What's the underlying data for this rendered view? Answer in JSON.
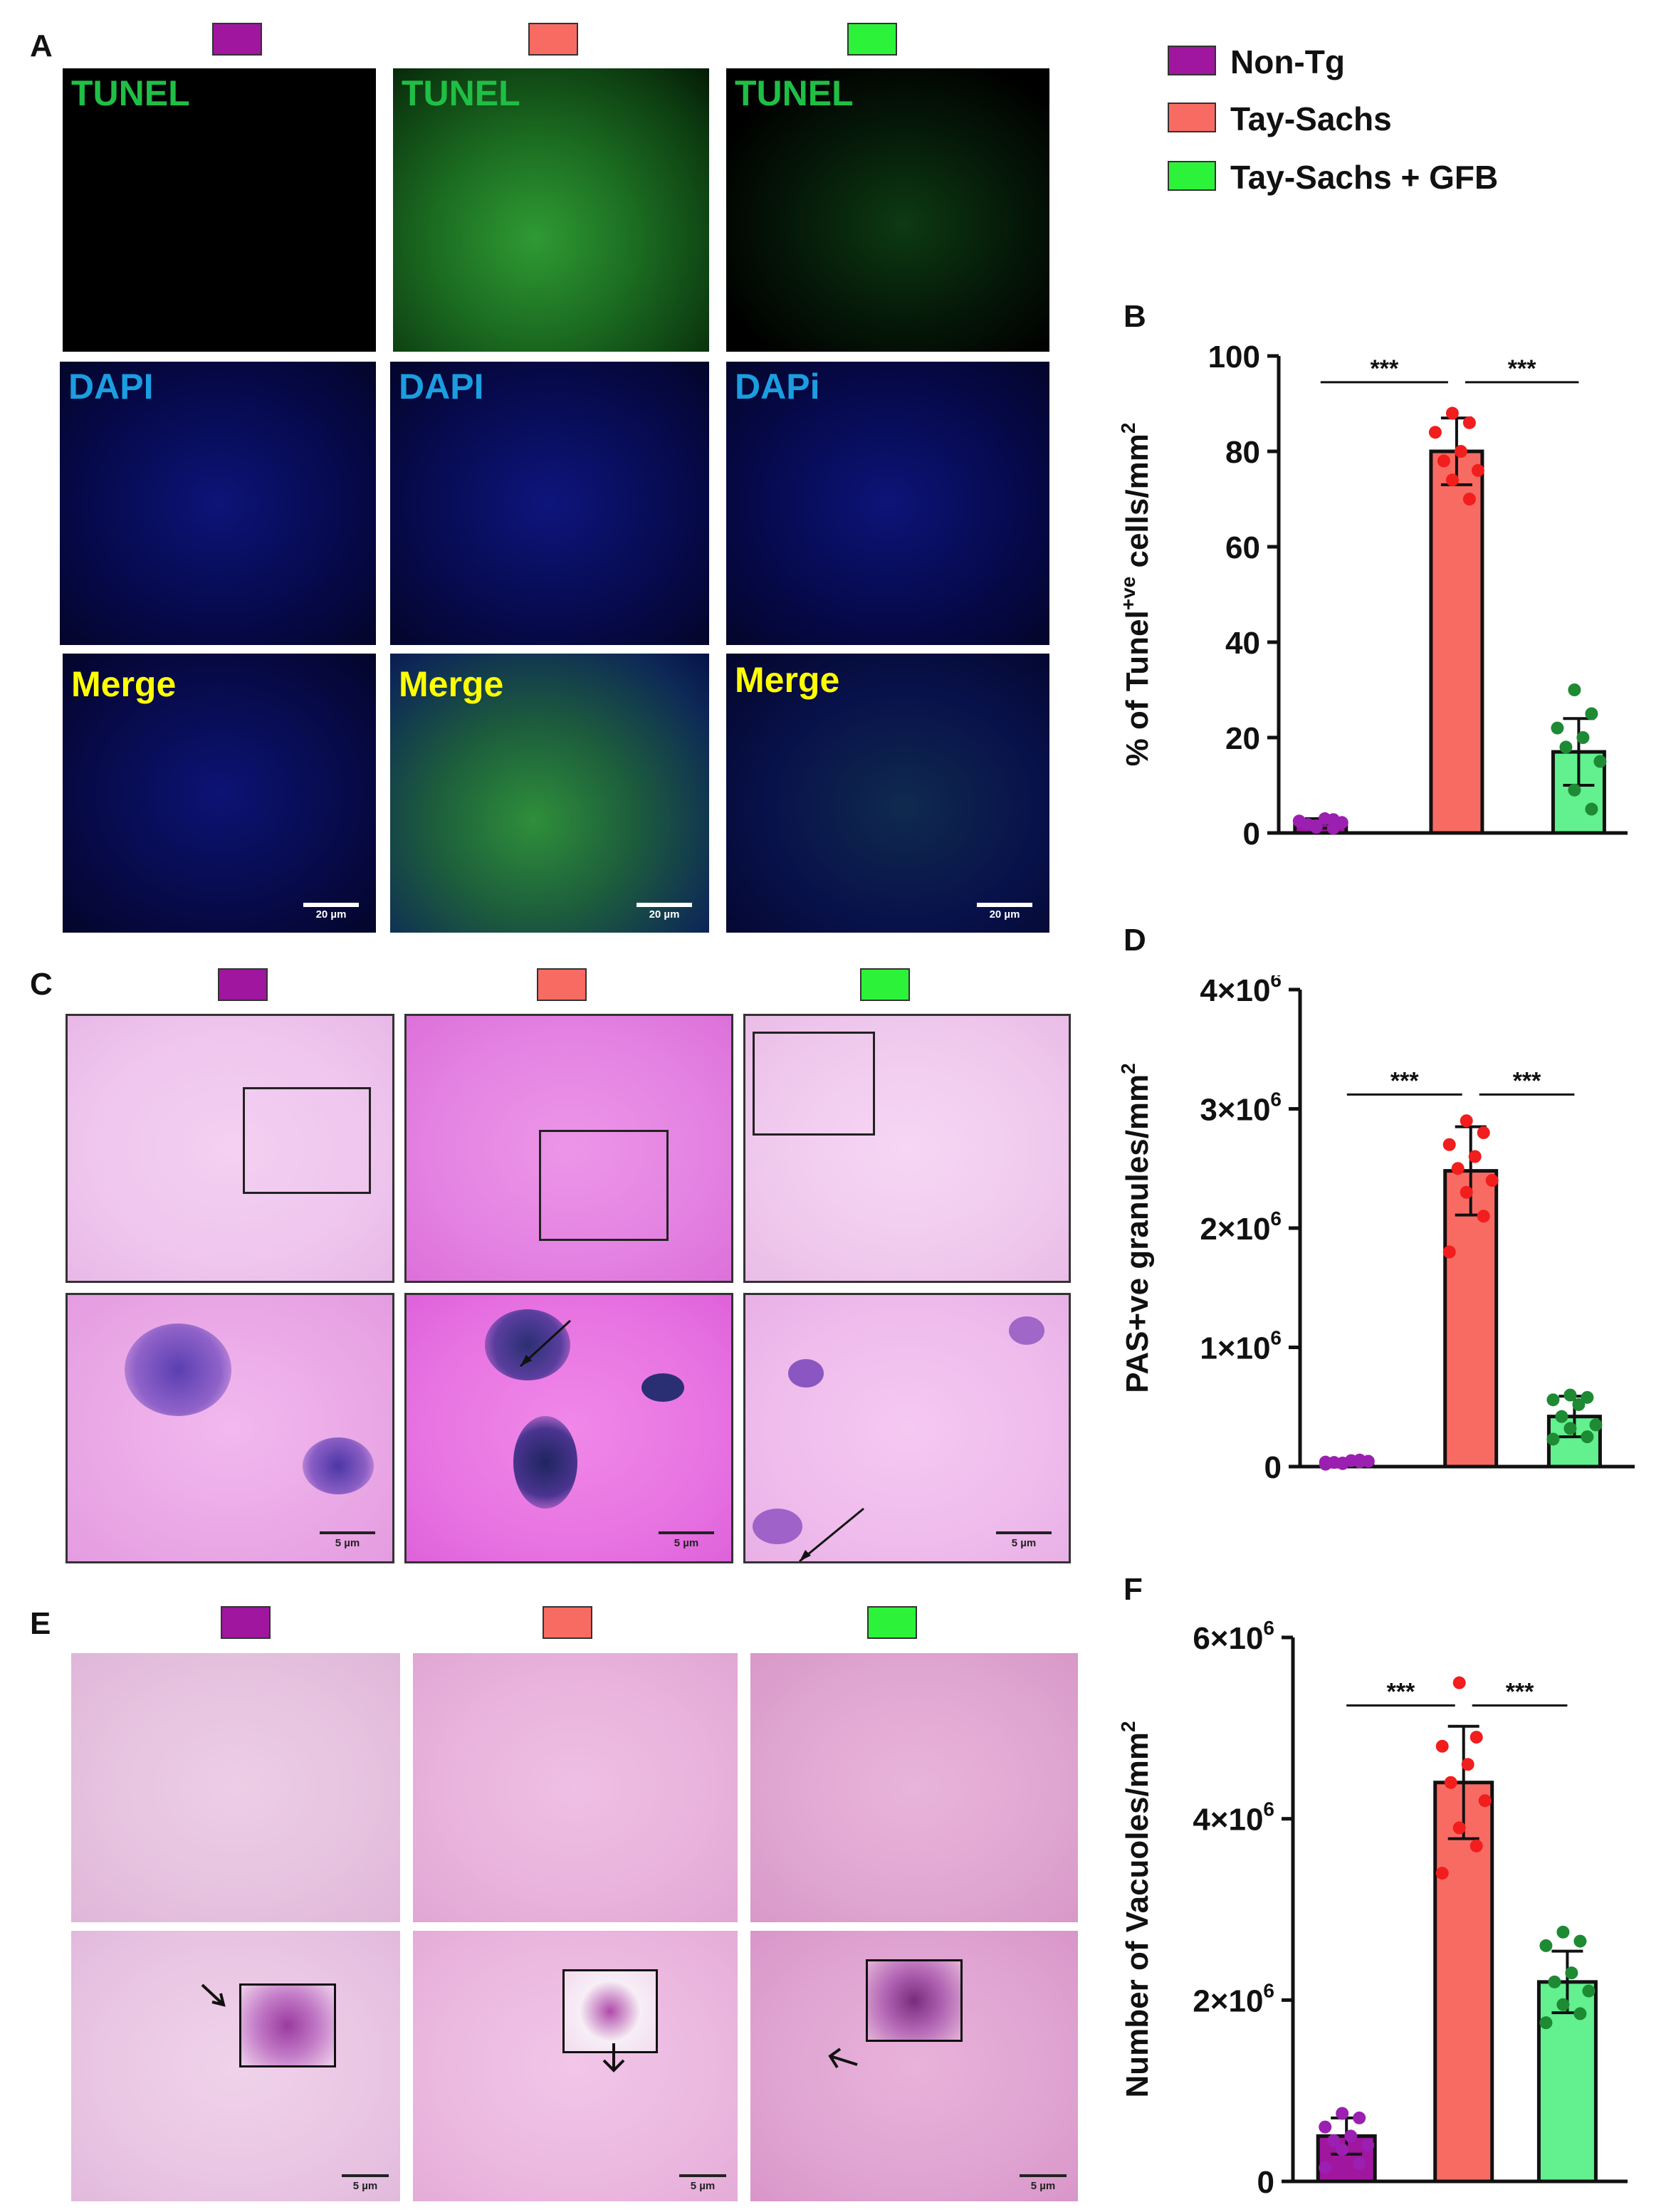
{
  "legend": {
    "items": [
      {
        "label": "Non-Tg",
        "color": "#a0169f"
      },
      {
        "label": "Tay-Sachs",
        "color": "#f86b63"
      },
      {
        "label": "Tay-Sachs + GFB",
        "color": "#2cf339"
      }
    ]
  },
  "panel_letters": {
    "a": "A",
    "b": "B",
    "c": "C",
    "d": "D",
    "e": "E",
    "f": "F"
  },
  "panel_a": {
    "row_labels": [
      "TUNEL",
      "DAPI",
      "Merge"
    ],
    "col3_dapi_label": "DAPi",
    "scale_bar": "20 µm",
    "label_colors": {
      "tunel": "#1fbf45",
      "dapi": "#1a9ee0",
      "merge": "#ffff00"
    }
  },
  "panel_c": {
    "scale_bar": "5 µm"
  },
  "panel_e": {
    "scale_bar": "5 µm"
  },
  "chart_data": [
    {
      "id": "B",
      "type": "bar",
      "categories": [
        "Non-Tg",
        "Tay-Sachs",
        "Tay-Sachs + GFB"
      ],
      "values": [
        2,
        80,
        17
      ],
      "error": [
        1,
        7,
        7
      ],
      "points": [
        [
          1.5,
          1.0,
          2.5,
          3.0,
          1.8,
          2.2,
          1.2,
          2.8
        ],
        [
          88,
          86,
          84,
          80,
          78,
          76,
          74,
          70
        ],
        [
          30,
          25,
          22,
          20,
          18,
          15,
          9,
          5
        ]
      ],
      "ylabel": "% of Tunel",
      "ylabel_sup": "+ve",
      "ylabel_tail": " cells/mm",
      "ylabel_sup2": "2",
      "ylim": [
        0,
        100
      ],
      "yticks": [
        "0",
        "20",
        "40",
        "60",
        "80",
        "100"
      ],
      "significance": [
        "***",
        "***"
      ],
      "colors": [
        "#a0169f",
        "#f86b63",
        "#63f08f"
      ],
      "point_colors": [
        "#9b1fb0",
        "#f21d1d",
        "#1e8a33"
      ]
    },
    {
      "id": "D",
      "type": "bar",
      "categories": [
        "Non-Tg",
        "Tay-Sachs",
        "Tay-Sachs + GFB"
      ],
      "values": [
        40000,
        2480000,
        420000
      ],
      "error": [
        15000,
        370000,
        170000
      ],
      "points": [
        [
          30000,
          40000,
          20000,
          50000,
          35000,
          45000,
          25000,
          55000,
          38000
        ],
        [
          2900000,
          2800000,
          2700000,
          2600000,
          2500000,
          2400000,
          2300000,
          2100000,
          1800000
        ],
        [
          600000,
          580000,
          560000,
          520000,
          420000,
          350000,
          320000,
          250000,
          230000
        ]
      ],
      "ylabel": "PAS+ve granules/mm",
      "ylabel_sup2": "2",
      "ylim": [
        0,
        4000000
      ],
      "yticks": [
        "0",
        "1×10",
        "2×10",
        "3×10",
        "4×10"
      ],
      "ytick_exp": "6",
      "significance": [
        "***",
        "***"
      ],
      "colors": [
        "#a0169f",
        "#f86b63",
        "#63f08f"
      ],
      "point_colors": [
        "#9b1fb0",
        "#f21d1d",
        "#1e8a33"
      ]
    },
    {
      "id": "F",
      "type": "bar",
      "categories": [
        "Non-Tg",
        "Tay-Sachs",
        "Tay-Sachs + GFB"
      ],
      "values": [
        500000,
        4400000,
        2200000
      ],
      "error": [
        200000,
        620000,
        340000
      ],
      "points": [
        [
          750000,
          700000,
          600000,
          500000,
          450000,
          400000,
          350000,
          200000,
          150000
        ],
        [
          5500000,
          4900000,
          4800000,
          4600000,
          4400000,
          4200000,
          3900000,
          3700000,
          3400000
        ],
        [
          2750000,
          2650000,
          2600000,
          2300000,
          2200000,
          2100000,
          1950000,
          1850000,
          1750000
        ]
      ],
      "ylabel": "Number of Vacuoles/mm",
      "ylabel_sup2": "2",
      "ylim": [
        0,
        6000000
      ],
      "yticks": [
        "0",
        "2×10",
        "4×10",
        "6×10"
      ],
      "ytick_exp": "6",
      "significance": [
        "***",
        "***"
      ],
      "colors": [
        "#a0169f",
        "#f86b63",
        "#63f08f"
      ],
      "point_colors": [
        "#9b1fb0",
        "#f21d1d",
        "#1e8a33"
      ]
    }
  ]
}
